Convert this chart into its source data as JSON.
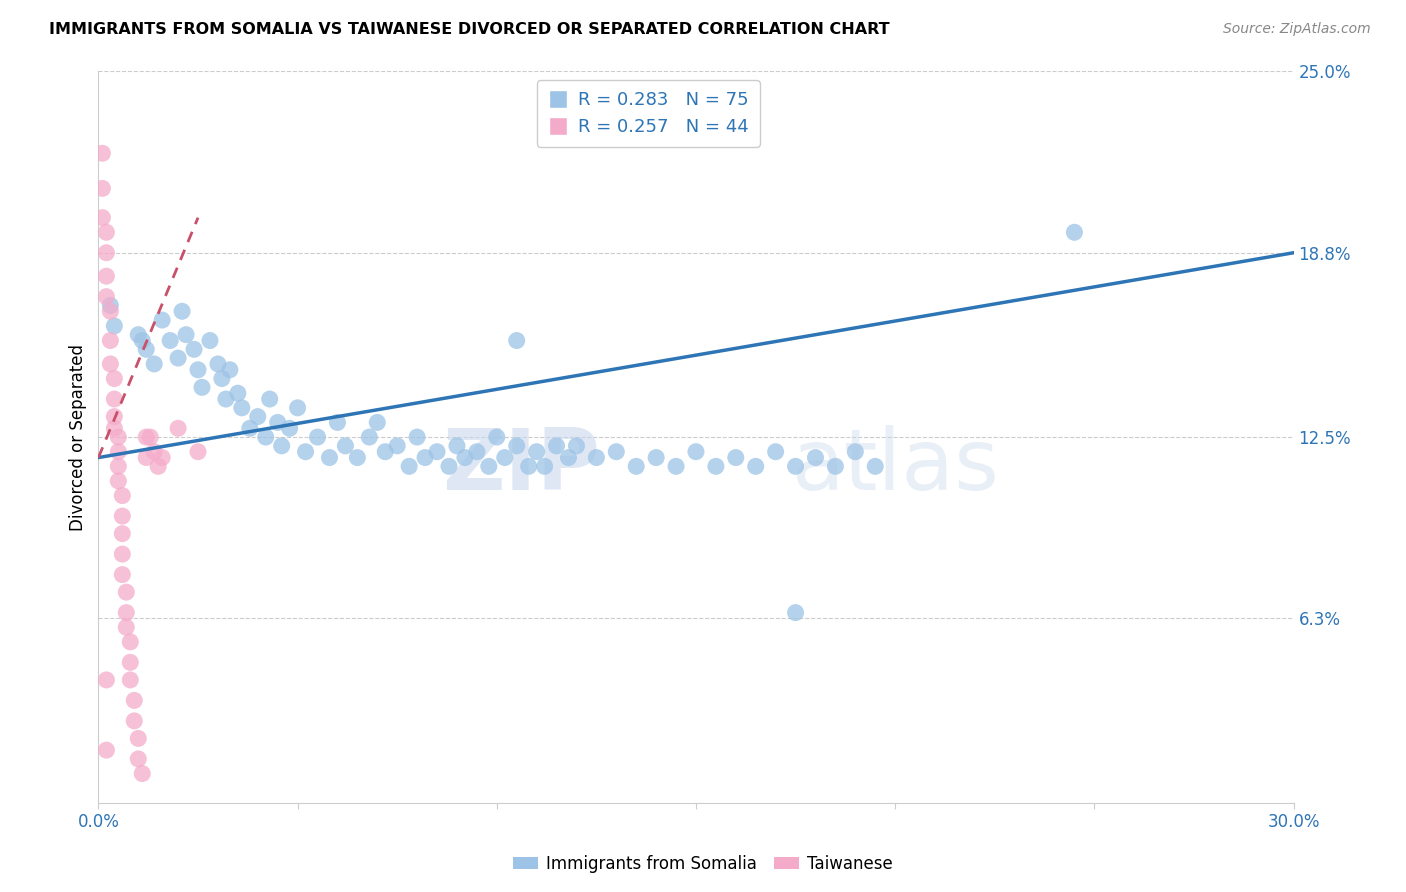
{
  "title": "IMMIGRANTS FROM SOMALIA VS TAIWANESE DIVORCED OR SEPARATED CORRELATION CHART",
  "source": "Source: ZipAtlas.com",
  "ylabel": "Divorced or Separated",
  "xmin": 0.0,
  "xmax": 0.3,
  "ymin": 0.0,
  "ymax": 0.25,
  "ytick_positions": [
    0.063,
    0.125,
    0.188,
    0.25
  ],
  "ytick_labels": [
    "6.3%",
    "12.5%",
    "18.8%",
    "25.0%"
  ],
  "legend_r1": "R = 0.283",
  "legend_n1": "N = 75",
  "legend_r2": "R = 0.257",
  "legend_n2": "N = 44",
  "blue_color": "#9DC3E6",
  "pink_color": "#F4ABCA",
  "trendline_blue_color": "#2E75B6",
  "trendline_pink_color": "#C9506A",
  "watermark_zip": "ZIP",
  "watermark_atlas": "atlas",
  "scatter_blue": [
    [
      0.003,
      0.17
    ],
    [
      0.004,
      0.163
    ],
    [
      0.01,
      0.16
    ],
    [
      0.011,
      0.158
    ],
    [
      0.012,
      0.155
    ],
    [
      0.014,
      0.15
    ],
    [
      0.016,
      0.165
    ],
    [
      0.018,
      0.158
    ],
    [
      0.02,
      0.152
    ],
    [
      0.021,
      0.168
    ],
    [
      0.022,
      0.16
    ],
    [
      0.024,
      0.155
    ],
    [
      0.025,
      0.148
    ],
    [
      0.026,
      0.142
    ],
    [
      0.028,
      0.158
    ],
    [
      0.03,
      0.15
    ],
    [
      0.031,
      0.145
    ],
    [
      0.032,
      0.138
    ],
    [
      0.033,
      0.148
    ],
    [
      0.035,
      0.14
    ],
    [
      0.036,
      0.135
    ],
    [
      0.038,
      0.128
    ],
    [
      0.04,
      0.132
    ],
    [
      0.042,
      0.125
    ],
    [
      0.043,
      0.138
    ],
    [
      0.045,
      0.13
    ],
    [
      0.046,
      0.122
    ],
    [
      0.048,
      0.128
    ],
    [
      0.05,
      0.135
    ],
    [
      0.052,
      0.12
    ],
    [
      0.055,
      0.125
    ],
    [
      0.058,
      0.118
    ],
    [
      0.06,
      0.13
    ],
    [
      0.062,
      0.122
    ],
    [
      0.065,
      0.118
    ],
    [
      0.068,
      0.125
    ],
    [
      0.07,
      0.13
    ],
    [
      0.072,
      0.12
    ],
    [
      0.075,
      0.122
    ],
    [
      0.078,
      0.115
    ],
    [
      0.08,
      0.125
    ],
    [
      0.082,
      0.118
    ],
    [
      0.085,
      0.12
    ],
    [
      0.088,
      0.115
    ],
    [
      0.09,
      0.122
    ],
    [
      0.092,
      0.118
    ],
    [
      0.095,
      0.12
    ],
    [
      0.098,
      0.115
    ],
    [
      0.1,
      0.125
    ],
    [
      0.102,
      0.118
    ],
    [
      0.105,
      0.122
    ],
    [
      0.108,
      0.115
    ],
    [
      0.11,
      0.12
    ],
    [
      0.112,
      0.115
    ],
    [
      0.115,
      0.122
    ],
    [
      0.118,
      0.118
    ],
    [
      0.12,
      0.122
    ],
    [
      0.125,
      0.118
    ],
    [
      0.13,
      0.12
    ],
    [
      0.135,
      0.115
    ],
    [
      0.14,
      0.118
    ],
    [
      0.145,
      0.115
    ],
    [
      0.15,
      0.12
    ],
    [
      0.155,
      0.115
    ],
    [
      0.16,
      0.118
    ],
    [
      0.165,
      0.115
    ],
    [
      0.17,
      0.12
    ],
    [
      0.175,
      0.115
    ],
    [
      0.18,
      0.118
    ],
    [
      0.185,
      0.115
    ],
    [
      0.19,
      0.12
    ],
    [
      0.195,
      0.115
    ],
    [
      0.245,
      0.195
    ],
    [
      0.175,
      0.065
    ],
    [
      0.105,
      0.158
    ]
  ],
  "scatter_pink": [
    [
      0.001,
      0.222
    ],
    [
      0.001,
      0.21
    ],
    [
      0.001,
      0.2
    ],
    [
      0.002,
      0.195
    ],
    [
      0.002,
      0.188
    ],
    [
      0.002,
      0.18
    ],
    [
      0.002,
      0.173
    ],
    [
      0.003,
      0.168
    ],
    [
      0.003,
      0.158
    ],
    [
      0.003,
      0.15
    ],
    [
      0.004,
      0.145
    ],
    [
      0.004,
      0.138
    ],
    [
      0.004,
      0.132
    ],
    [
      0.004,
      0.128
    ],
    [
      0.005,
      0.125
    ],
    [
      0.005,
      0.12
    ],
    [
      0.005,
      0.115
    ],
    [
      0.005,
      0.11
    ],
    [
      0.006,
      0.105
    ],
    [
      0.006,
      0.098
    ],
    [
      0.006,
      0.092
    ],
    [
      0.006,
      0.085
    ],
    [
      0.006,
      0.078
    ],
    [
      0.007,
      0.072
    ],
    [
      0.007,
      0.065
    ],
    [
      0.007,
      0.06
    ],
    [
      0.008,
      0.055
    ],
    [
      0.008,
      0.048
    ],
    [
      0.008,
      0.042
    ],
    [
      0.009,
      0.035
    ],
    [
      0.009,
      0.028
    ],
    [
      0.01,
      0.022
    ],
    [
      0.01,
      0.015
    ],
    [
      0.011,
      0.01
    ],
    [
      0.012,
      0.125
    ],
    [
      0.012,
      0.118
    ],
    [
      0.013,
      0.125
    ],
    [
      0.014,
      0.12
    ],
    [
      0.015,
      0.115
    ],
    [
      0.016,
      0.118
    ],
    [
      0.002,
      0.042
    ],
    [
      0.002,
      0.018
    ],
    [
      0.02,
      0.128
    ],
    [
      0.025,
      0.12
    ]
  ],
  "blue_trendline_x": [
    0.0,
    0.3
  ],
  "blue_trendline_y": [
    0.118,
    0.188
  ],
  "pink_trendline_x": [
    0.0,
    0.025
  ],
  "pink_trendline_y": [
    0.118,
    0.2
  ]
}
